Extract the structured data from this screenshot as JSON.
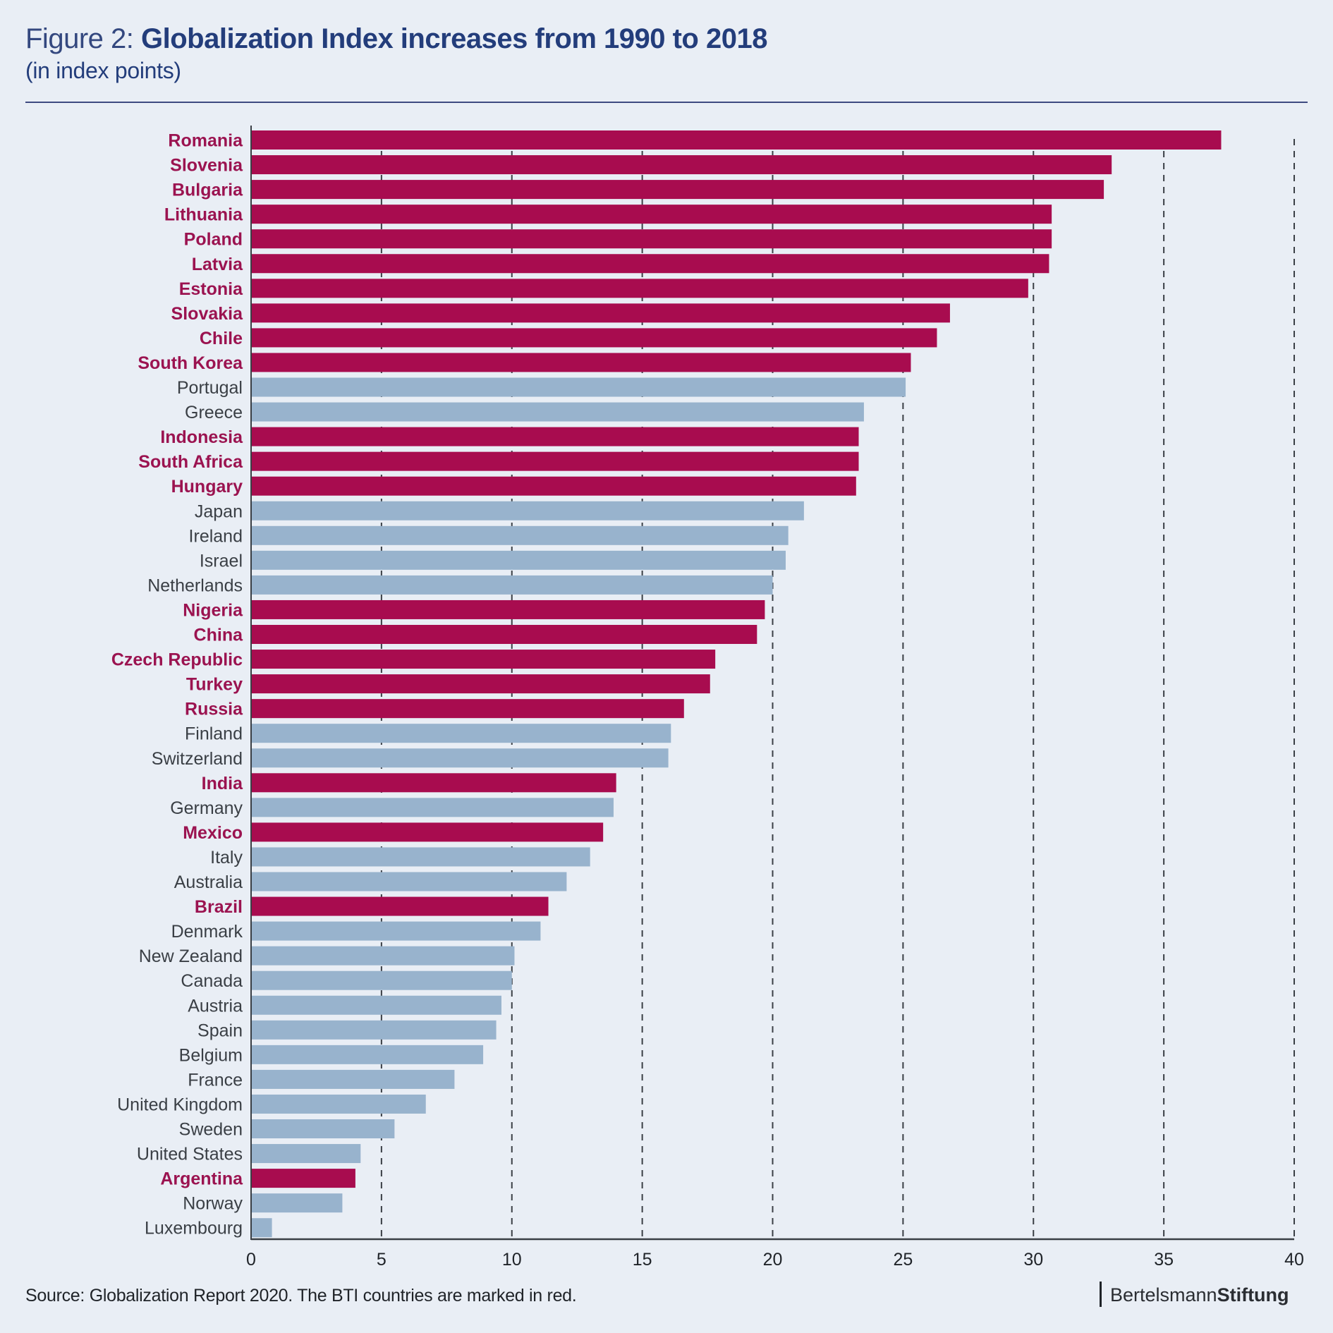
{
  "header": {
    "figure_prefix": "Figure 2:",
    "title": "Globalization Index increases from 1990 to 2018",
    "subtitle": "(in index points)"
  },
  "footer": {
    "source": "Source: Globalization Report 2020. The BTI countries are marked in red.",
    "brand_regular": "Bertelsmann",
    "brand_bold": "Stiftung"
  },
  "colors": {
    "bti": "#a80c4f",
    "other": "#98b3cd",
    "bti_label": "#9b1350",
    "other_label": "#3a3f45",
    "grid": "#3a3f45",
    "background": "#e9eef5",
    "title": "#233d7b"
  },
  "chart_data": {
    "type": "bar",
    "orientation": "horizontal",
    "title": "Globalization Index increases from 1990 to 2018",
    "subtitle": "(in index points)",
    "xlabel": "",
    "ylabel": "",
    "xlim": [
      0,
      40
    ],
    "xticks": [
      0,
      5,
      10,
      15,
      20,
      25,
      30,
      35,
      40
    ],
    "grid": "vertical dashed",
    "legend": "none (BTI countries marked in red)",
    "categories": [
      "Romania",
      "Slovenia",
      "Bulgaria",
      "Lithuania",
      "Poland",
      "Latvia",
      "Estonia",
      "Slovakia",
      "Chile",
      "South Korea",
      "Portugal",
      "Greece",
      "Indonesia",
      "South Africa",
      "Hungary",
      "Japan",
      "Ireland",
      "Israel",
      "Netherlands",
      "Nigeria",
      "China",
      "Czech Republic",
      "Turkey",
      "Russia",
      "Finland",
      "Switzerland",
      "India",
      "Germany",
      "Mexico",
      "Italy",
      "Australia",
      "Brazil",
      "Denmark",
      "New Zealand",
      "Canada",
      "Austria",
      "Spain",
      "Belgium",
      "France",
      "United Kingdom",
      "Sweden",
      "United States",
      "Argentina",
      "Norway",
      "Luxembourg"
    ],
    "values": [
      37.2,
      33.0,
      32.7,
      30.7,
      30.7,
      30.6,
      29.8,
      26.8,
      26.3,
      25.3,
      25.1,
      23.5,
      23.3,
      23.3,
      23.2,
      21.2,
      20.6,
      20.5,
      20.0,
      19.7,
      19.4,
      17.8,
      17.6,
      16.6,
      16.1,
      16.0,
      14.0,
      13.9,
      13.5,
      13.0,
      12.1,
      11.4,
      11.1,
      10.1,
      10.0,
      9.6,
      9.4,
      8.9,
      7.8,
      6.7,
      5.5,
      4.2,
      4.0,
      3.5,
      0.8
    ],
    "bti": [
      true,
      true,
      true,
      true,
      true,
      true,
      true,
      true,
      true,
      true,
      false,
      false,
      true,
      true,
      true,
      false,
      false,
      false,
      false,
      true,
      true,
      true,
      true,
      true,
      false,
      false,
      true,
      false,
      true,
      false,
      false,
      true,
      false,
      false,
      false,
      false,
      false,
      false,
      false,
      false,
      false,
      false,
      true,
      false,
      false
    ]
  }
}
